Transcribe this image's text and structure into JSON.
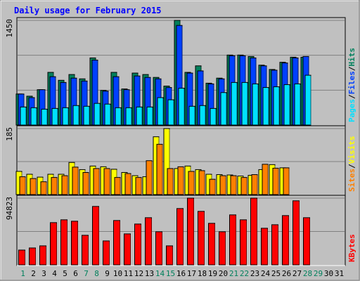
{
  "colors": {
    "hits": "#00805c",
    "files": "#0040ff",
    "pages": "#00e0ff",
    "visits": "#ffff00",
    "sites": "#ff8000",
    "kbytes": "#ff0000",
    "title": "#0000ff",
    "weekend_day": "#00805c",
    "weekday": "#000000"
  },
  "chart_data": {
    "type": "bar",
    "title": "Daily usage for February 2015",
    "days": [
      "1",
      "2",
      "3",
      "4",
      "5",
      "6",
      "7",
      "8",
      "9",
      "10",
      "11",
      "12",
      "13",
      "14",
      "15",
      "16",
      "17",
      "18",
      "19",
      "20",
      "21",
      "22",
      "23",
      "24",
      "25",
      "26",
      "27",
      "28",
      "29",
      "30",
      "31"
    ],
    "weekend_days": [
      "1",
      "7",
      "8",
      "14",
      "15",
      "21",
      "22",
      "28",
      "29"
    ],
    "panels": [
      {
        "name": "hits-files-pages",
        "ymax": 1450,
        "ymax_label": "1450",
        "legend": [
          {
            "label": "Pages",
            "color_key": "pages"
          },
          {
            "label": "/",
            "color_key": "weekday"
          },
          {
            "label": "Files",
            "color_key": "files"
          },
          {
            "label": "/",
            "color_key": "weekday"
          },
          {
            "label": "Hits",
            "color_key": "hits"
          }
        ],
        "series": [
          {
            "name": "Hits",
            "color_key": "hits",
            "values": [
              430,
              400,
              490,
              730,
              620,
              700,
              640,
              930,
              480,
              730,
              500,
              720,
              700,
              660,
              540,
              1450,
              730,
              820,
              580,
              650,
              970,
              970,
              950,
              830,
              770,
              870,
              940,
              940,
              0,
              0,
              0
            ]
          },
          {
            "name": "Files",
            "color_key": "files",
            "values": [
              430,
              380,
              490,
              670,
              590,
              650,
              610,
              900,
              470,
              670,
              490,
              680,
              660,
              640,
              520,
              1380,
              720,
              750,
              570,
              640,
              960,
              960,
              930,
              820,
              760,
              860,
              930,
              950,
              0,
              0,
              0
            ]
          },
          {
            "name": "Pages",
            "color_key": "pages",
            "values": [
              250,
              240,
              220,
              230,
              240,
              270,
              260,
              300,
              290,
              240,
              240,
              250,
              250,
              380,
              350,
              510,
              260,
              270,
              230,
              450,
              590,
              590,
              570,
              520,
              530,
              560,
              570,
              690,
              0,
              0,
              0
            ]
          }
        ]
      },
      {
        "name": "visits-sites",
        "ymax": 185,
        "ymax_label": "185",
        "legend": [
          {
            "label": "Sites",
            "color_key": "sites"
          },
          {
            "label": "/",
            "color_key": "weekday"
          },
          {
            "label": "Visits",
            "color_key": "visits"
          }
        ],
        "series": [
          {
            "name": "Visits",
            "color_key": "visits",
            "values": [
              65,
              57,
              49,
              57,
              57,
              90,
              70,
              80,
              78,
              71,
              62,
              53,
              50,
              162,
              185,
              73,
              80,
              70,
              57,
              56,
              55,
              52,
              54,
              70,
              84,
              75,
              0,
              0,
              0,
              0,
              0
            ]
          },
          {
            "name": "Sites",
            "color_key": "sites",
            "values": [
              50,
              45,
              36,
              48,
              53,
              77,
              62,
              73,
              73,
              48,
              59,
              48,
              95,
              141,
              73,
              78,
              65,
              67,
              43,
              53,
              53,
              48,
              56,
              85,
              74,
              75,
              0,
              0,
              0,
              0,
              0
            ]
          }
        ]
      },
      {
        "name": "kbytes",
        "ymax": 94823,
        "ymax_label": "94823",
        "legend": [
          {
            "label": "KBytes",
            "color_key": "kbytes"
          }
        ],
        "series": [
          {
            "name": "KBytes",
            "color_key": "kbytes",
            "values": [
              21000,
              24000,
              27000,
              60000,
              64000,
              62000,
              42000,
              83000,
              34000,
              63000,
              44000,
              58000,
              67000,
              47000,
              27000,
              80000,
              94823,
              76000,
              59000,
              47000,
              71000,
              64000,
              94823,
              52000,
              57000,
              70000,
              91000,
              67000,
              0,
              0,
              0
            ]
          }
        ]
      }
    ]
  }
}
